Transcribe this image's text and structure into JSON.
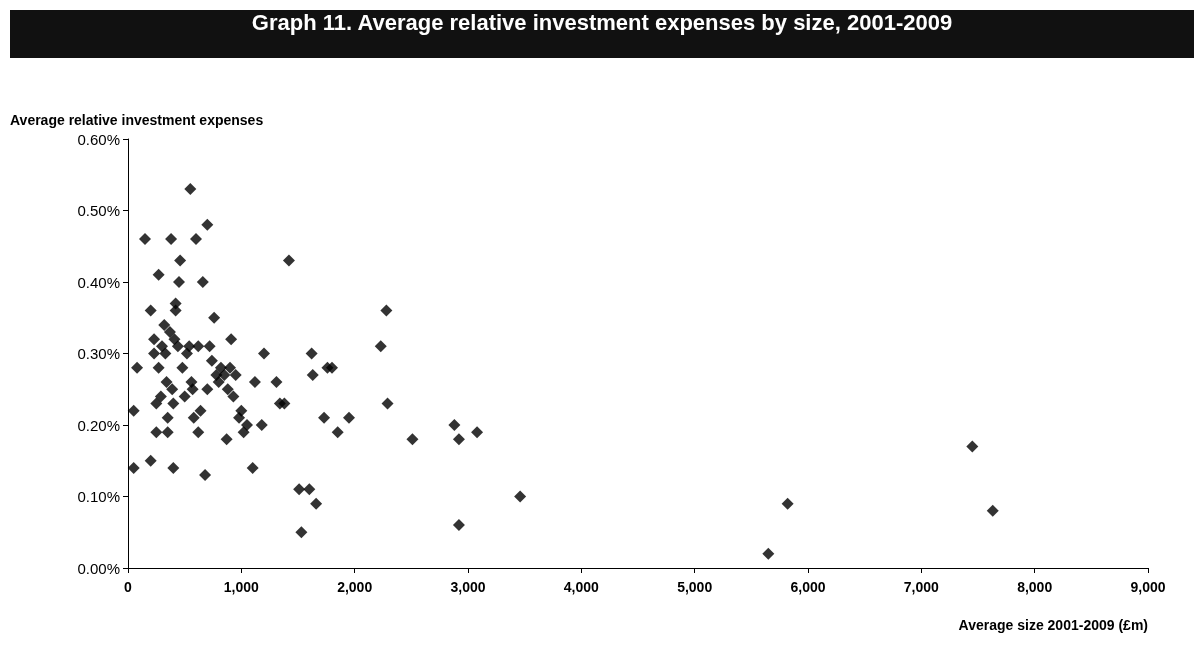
{
  "chart_data": {
    "type": "scatter",
    "title": "Graph 11. Average relative investment expenses by size, 2001-2009",
    "xlabel": "Average size 2001-2009 (£m)",
    "ylabel": "Average relative investment expenses",
    "marker": "diamond",
    "grid": false,
    "xlim": [
      0,
      9000
    ],
    "xticks": [
      {
        "value": 0,
        "label": "0"
      },
      {
        "value": 1000,
        "label": "1,000"
      },
      {
        "value": 2000,
        "label": "2,000"
      },
      {
        "value": 3000,
        "label": "3,000"
      },
      {
        "value": 4000,
        "label": "4,000"
      },
      {
        "value": 5000,
        "label": "5,000"
      },
      {
        "value": 6000,
        "label": "6,000"
      },
      {
        "value": 7000,
        "label": "7,000"
      },
      {
        "value": 8000,
        "label": "8,000"
      },
      {
        "value": 9000,
        "label": "9,000"
      }
    ],
    "ylim": [
      0,
      0.6
    ],
    "yticks": [
      {
        "value": 0,
        "label": "0.00%"
      },
      {
        "value": 0.1,
        "label": "0.10%"
      },
      {
        "value": 0.2,
        "label": "0.20%"
      },
      {
        "value": 0.3,
        "label": "0.30%"
      },
      {
        "value": 0.4,
        "label": "0.40%"
      },
      {
        "value": 0.5,
        "label": "0.50%"
      },
      {
        "value": 0.6,
        "label": "0.60%"
      }
    ],
    "series": [
      {
        "color": "#000000",
        "x": [
          50,
          50,
          80,
          150,
          200,
          200,
          230,
          230,
          250,
          250,
          270,
          270,
          290,
          300,
          320,
          330,
          340,
          350,
          350,
          370,
          380,
          390,
          400,
          400,
          410,
          420,
          420,
          440,
          450,
          460,
          480,
          500,
          520,
          540,
          550,
          560,
          570,
          580,
          600,
          620,
          620,
          640,
          660,
          680,
          700,
          700,
          720,
          740,
          760,
          780,
          800,
          820,
          850,
          870,
          880,
          900,
          910,
          930,
          950,
          980,
          1000,
          1020,
          1050,
          1100,
          1120,
          1180,
          1200,
          1310,
          1340,
          1380,
          1420,
          1510,
          1530,
          1600,
          1620,
          1630,
          1660,
          1730,
          1760,
          1800,
          1850,
          1950,
          2230,
          2280,
          2290,
          2510,
          2880,
          2920,
          2920,
          3080,
          3460,
          5650,
          5820,
          7450,
          7630
        ],
        "values": [
          0.22,
          0.14,
          0.28,
          0.46,
          0.36,
          0.15,
          0.32,
          0.3,
          0.23,
          0.19,
          0.41,
          0.28,
          0.24,
          0.31,
          0.34,
          0.3,
          0.26,
          0.19,
          0.21,
          0.33,
          0.46,
          0.25,
          0.23,
          0.14,
          0.32,
          0.37,
          0.36,
          0.31,
          0.4,
          0.43,
          0.28,
          0.24,
          0.3,
          0.31,
          0.53,
          0.26,
          0.25,
          0.21,
          0.46,
          0.31,
          0.19,
          0.22,
          0.4,
          0.13,
          0.25,
          0.48,
          0.31,
          0.29,
          0.35,
          0.27,
          0.26,
          0.28,
          0.27,
          0.18,
          0.25,
          0.28,
          0.32,
          0.24,
          0.27,
          0.21,
          0.22,
          0.19,
          0.2,
          0.14,
          0.26,
          0.2,
          0.3,
          0.26,
          0.23,
          0.23,
          0.43,
          0.11,
          0.05,
          0.11,
          0.3,
          0.27,
          0.09,
          0.21,
          0.28,
          0.28,
          0.19,
          0.21,
          0.31,
          0.36,
          0.23,
          0.18,
          0.2,
          0.18,
          0.06,
          0.19,
          0.1,
          0.02,
          0.09,
          0.17,
          0.08
        ]
      }
    ]
  }
}
